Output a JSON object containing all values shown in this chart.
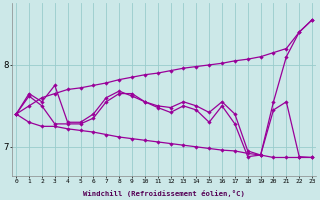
{
  "xlabel": "Windchill (Refroidissement éolien,°C)",
  "x": [
    0,
    1,
    2,
    3,
    4,
    5,
    6,
    7,
    8,
    9,
    10,
    11,
    12,
    13,
    14,
    15,
    16,
    17,
    18,
    19,
    20,
    21,
    22,
    23
  ],
  "upper_line": [
    7.4,
    7.5,
    7.6,
    7.65,
    7.7,
    7.72,
    7.75,
    7.78,
    7.82,
    7.85,
    7.88,
    7.9,
    7.93,
    7.96,
    7.98,
    8.0,
    8.02,
    8.05,
    8.07,
    8.1,
    8.15,
    8.2,
    8.4,
    8.55
  ],
  "lower_line": [
    7.4,
    7.3,
    7.25,
    7.25,
    7.22,
    7.2,
    7.18,
    7.15,
    7.12,
    7.1,
    7.08,
    7.06,
    7.04,
    7.02,
    7.0,
    6.98,
    6.96,
    6.95,
    6.92,
    6.9,
    6.87,
    6.87,
    6.87,
    6.87
  ],
  "zigzag1": [
    7.4,
    7.65,
    7.55,
    7.75,
    7.3,
    7.3,
    7.4,
    7.6,
    7.68,
    7.62,
    7.55,
    7.5,
    7.48,
    7.55,
    7.5,
    7.42,
    7.55,
    7.4,
    6.95,
    6.9,
    7.55,
    8.1,
    8.4,
    8.55
  ],
  "zigzag2": [
    7.4,
    7.62,
    7.5,
    7.28,
    7.28,
    7.28,
    7.35,
    7.55,
    7.65,
    7.65,
    7.55,
    7.48,
    7.42,
    7.5,
    7.45,
    7.3,
    7.5,
    7.28,
    6.88,
    6.9,
    7.45,
    7.55,
    6.88,
    6.87
  ],
  "bg_color": "#cce8e8",
  "line_color": "#990099",
  "grid_color": "#99cccc",
  "ylim": [
    6.65,
    8.75
  ],
  "yticks": [
    7.0,
    8.0
  ],
  "xlim": [
    -0.3,
    23.3
  ]
}
